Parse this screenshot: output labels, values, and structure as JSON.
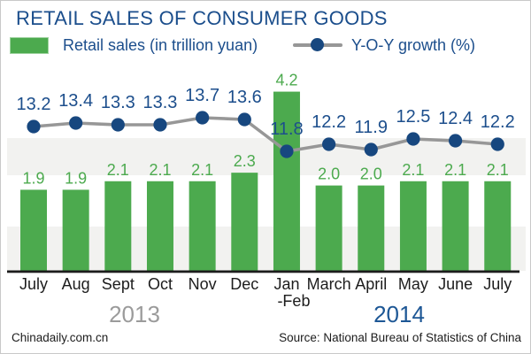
{
  "header": {
    "title": "RETAIL SALES OF CONSUMER GOODS",
    "legend": {
      "bar_label": "Retail sales (in trillion yuan)",
      "line_label": "Y-O-Y growth (%)"
    }
  },
  "chart_data": {
    "type": "combo",
    "categories": [
      "July",
      "Aug",
      "Sept",
      "Oct",
      "Nov",
      "Dec",
      "Jan",
      "March",
      "April",
      "May",
      "June",
      "July"
    ],
    "category_sublabels": {
      "6": "-Feb"
    },
    "series": [
      {
        "name": "Retail sales (in trillion yuan)",
        "type": "bar",
        "values": [
          1.9,
          1.9,
          2.1,
          2.1,
          2.1,
          2.3,
          4.2,
          2.0,
          2.0,
          2.1,
          2.1,
          2.1
        ],
        "color": "#4caa4e",
        "label_color": "#4caa4e"
      },
      {
        "name": "Y-O-Y growth (%)",
        "type": "line",
        "values": [
          13.2,
          13.4,
          13.3,
          13.3,
          13.7,
          13.6,
          11.8,
          12.2,
          11.9,
          12.5,
          12.4,
          12.2
        ],
        "line_color": "#979797",
        "marker_color": "#17477f",
        "label_color": "#1c4e8c"
      }
    ],
    "year_groups": [
      {
        "label": "2013",
        "color": "#9b9b9b"
      },
      {
        "label": "2014",
        "color": "#1d5795"
      }
    ],
    "value_label_decimals": 1,
    "band_color": "#f2f2f0",
    "axis_color": "#1c1c1c",
    "month_label_color": "#1c1c1c",
    "legend_position": "top",
    "grid": "horizontal-bands"
  },
  "footer": {
    "left": "Chinadaily.com.cn",
    "right": "Source: National Bureau of Statistics of China"
  },
  "colors": {
    "title": "#1b4e8c",
    "legend_text": "#1c4e8c",
    "bar_green": "#4caa4e",
    "marker_navy": "#17477f",
    "line_gray": "#979797",
    "band_gray": "#f2f2f0",
    "border": "#c9c9c9"
  }
}
